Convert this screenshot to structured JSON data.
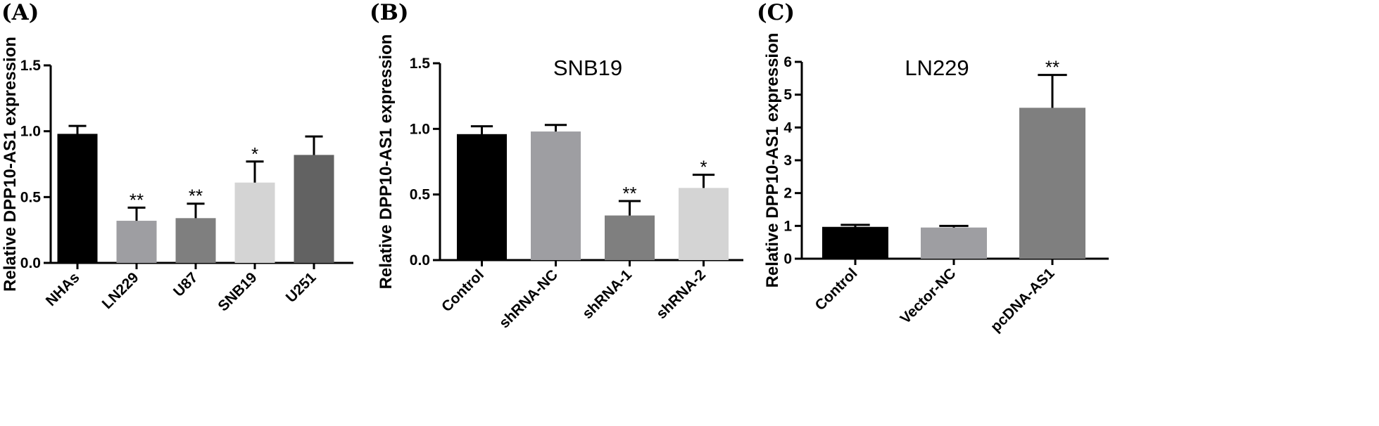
{
  "chart_data": [
    {
      "type": "bar",
      "panel": "(A)",
      "title": "",
      "xlabel": "",
      "ylabel": "Relative  DPP10-AS1 expression",
      "ylim": [
        0,
        1.5
      ],
      "yticks": [
        "0.0",
        "0.5",
        "1.0",
        "1.5"
      ],
      "categories": [
        "NHAs",
        "LN229",
        "U87",
        "SNB19",
        "U251"
      ],
      "values": [
        0.98,
        0.32,
        0.34,
        0.61,
        0.82
      ],
      "errors": [
        0.06,
        0.1,
        0.11,
        0.16,
        0.14
      ],
      "significance": [
        "",
        "**",
        "**",
        "*",
        ""
      ],
      "colors": [
        "#000000",
        "#9e9ea2",
        "#7f7f7f",
        "#d4d4d4",
        "#626262"
      ]
    },
    {
      "type": "bar",
      "panel": "(B)",
      "title": "SNB19",
      "xlabel": "",
      "ylabel": "Relative  DPP10-AS1 expression",
      "ylim": [
        0,
        1.5
      ],
      "yticks": [
        "0.0",
        "0.5",
        "1.0",
        "1.5"
      ],
      "categories": [
        "Control",
        "shRNA-NC",
        "shRNA-1",
        "shRNA-2"
      ],
      "values": [
        0.96,
        0.98,
        0.34,
        0.55
      ],
      "errors": [
        0.06,
        0.05,
        0.11,
        0.1
      ],
      "significance": [
        "",
        "",
        "**",
        "*"
      ],
      "colors": [
        "#000000",
        "#9e9ea2",
        "#7f7f7f",
        "#d4d4d4"
      ]
    },
    {
      "type": "bar",
      "panel": "(C)",
      "title": "LN229",
      "xlabel": "",
      "ylabel": "Relative  DPP10-AS1 expression",
      "ylim": [
        0,
        6
      ],
      "yticks": [
        "0",
        "1",
        "2",
        "3",
        "4",
        "5",
        "6"
      ],
      "categories": [
        "Control",
        "Vector-NC",
        "pcDNA-AS1"
      ],
      "values": [
        0.97,
        0.95,
        4.6
      ],
      "errors": [
        0.06,
        0.05,
        1.0
      ],
      "significance": [
        "",
        "",
        "**"
      ],
      "colors": [
        "#000000",
        "#9e9ea2",
        "#7f7f7f"
      ]
    }
  ]
}
